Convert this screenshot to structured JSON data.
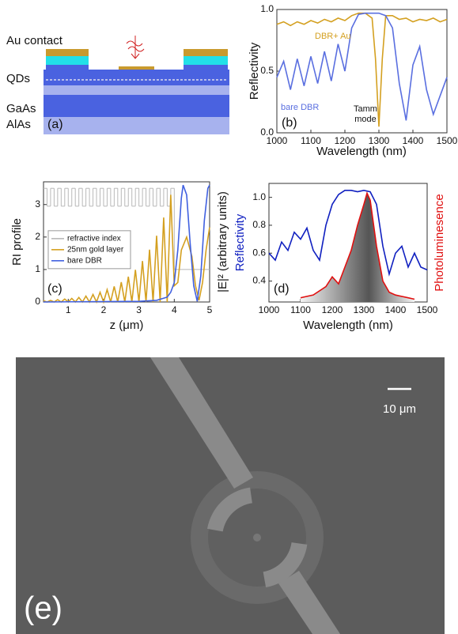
{
  "diagram": {
    "labels": [
      "Au contact",
      "QDs",
      "GaAs",
      "AlAs"
    ],
    "panel_label": "(a)"
  },
  "chart_data": [
    {
      "type": "line",
      "panel_label": "(b)",
      "x_label": "Wavelength (nm)",
      "y_label": "Reflectivity",
      "annotation": "Tamm mode",
      "x": [
        1000,
        1020,
        1040,
        1060,
        1080,
        1100,
        1120,
        1140,
        1160,
        1180,
        1200,
        1220,
        1240,
        1260,
        1280,
        1290,
        1300,
        1310,
        1320,
        1340,
        1360,
        1380,
        1400,
        1420,
        1440,
        1460,
        1480,
        1500
      ],
      "series": [
        {
          "name": "DBR+ Au",
          "color": "#d4a020",
          "values": [
            0.88,
            0.9,
            0.87,
            0.9,
            0.88,
            0.91,
            0.89,
            0.92,
            0.9,
            0.93,
            0.91,
            0.95,
            0.97,
            0.97,
            0.93,
            0.6,
            0.05,
            0.6,
            0.95,
            0.95,
            0.92,
            0.93,
            0.9,
            0.92,
            0.91,
            0.93,
            0.9,
            0.92
          ]
        },
        {
          "name": "bare DBR",
          "color": "#5a6fe0",
          "values": [
            0.45,
            0.58,
            0.35,
            0.6,
            0.38,
            0.62,
            0.4,
            0.66,
            0.42,
            0.72,
            0.5,
            0.85,
            0.96,
            0.97,
            0.97,
            0.97,
            0.97,
            0.96,
            0.95,
            0.85,
            0.4,
            0.1,
            0.55,
            0.7,
            0.35,
            0.15,
            0.3,
            0.45
          ]
        }
      ],
      "xlim": [
        1000,
        1500
      ],
      "ylim": [
        0,
        1
      ],
      "xticks": [
        1000,
        1100,
        1200,
        1300,
        1400,
        1500
      ],
      "yticks": [
        {
          "value": 0,
          "label": "0.0"
        },
        {
          "value": 0.5,
          "label": "0.5"
        },
        {
          "value": 1,
          "label": "1.0"
        }
      ]
    },
    {
      "type": "line",
      "panel_label": "(c)",
      "x_label": "z (μm)",
      "y_label": "RI profile",
      "y2_label": "|E|² (arbitrary units)",
      "legend": "center-left",
      "series": [
        {
          "name": "refractive index",
          "color": "#b8b8b8",
          "step": true,
          "x": [
            0.3,
            0.4,
            0.5,
            0.6,
            0.7,
            0.8,
            0.9,
            1.0,
            1.1,
            1.2,
            1.3,
            1.4,
            1.5,
            1.6,
            1.7,
            1.8,
            1.9,
            2.0,
            2.1,
            2.2,
            2.3,
            2.4,
            2.5,
            2.6,
            2.7,
            2.8,
            2.9,
            3.0,
            3.1,
            3.2,
            3.3,
            3.4,
            3.5,
            3.6,
            3.7,
            3.8,
            3.9,
            4.0,
            5.0
          ],
          "values": [
            3.5,
            2.95,
            3.5,
            2.95,
            3.5,
            2.95,
            3.5,
            2.95,
            3.5,
            2.95,
            3.5,
            2.95,
            3.5,
            2.95,
            3.5,
            2.95,
            3.5,
            2.95,
            3.5,
            2.95,
            3.5,
            2.95,
            3.5,
            2.95,
            3.5,
            2.95,
            3.5,
            2.95,
            3.5,
            2.95,
            3.5,
            2.95,
            3.5,
            2.95,
            3.5,
            2.95,
            3.5,
            1.0,
            1.0
          ]
        },
        {
          "name": "25nm gold layer",
          "color": "#d4a020",
          "x": [
            0.3,
            0.4,
            0.5,
            0.6,
            0.7,
            0.8,
            0.9,
            1.0,
            1.1,
            1.2,
            1.3,
            1.4,
            1.5,
            1.6,
            1.7,
            1.8,
            1.9,
            2.0,
            2.1,
            2.2,
            2.3,
            2.4,
            2.5,
            2.6,
            2.7,
            2.8,
            2.9,
            3.0,
            3.1,
            3.2,
            3.3,
            3.4,
            3.5,
            3.6,
            3.7,
            3.8,
            3.9,
            4.0,
            4.1,
            4.2,
            4.35,
            4.5,
            4.6,
            4.7,
            4.8,
            4.9,
            5.0
          ],
          "values": [
            0.04,
            0,
            0.05,
            0,
            0.07,
            0,
            0.09,
            0,
            0.11,
            0,
            0.14,
            0,
            0.18,
            0,
            0.23,
            0,
            0.3,
            0,
            0.38,
            0,
            0.48,
            0,
            0.61,
            0,
            0.78,
            0,
            0.99,
            0,
            1.26,
            0,
            1.61,
            0,
            2.04,
            0,
            2.6,
            0,
            3.3,
            0.5,
            0.6,
            1.6,
            2.0,
            1.4,
            0.5,
            0.05,
            0.6,
            1.6,
            2.3
          ]
        },
        {
          "name": "bare DBR",
          "color": "#4060e0",
          "x": [
            0.3,
            3.0,
            3.5,
            3.8,
            3.9,
            4.0,
            4.1,
            4.2,
            4.25,
            4.35,
            4.45,
            4.55,
            4.65,
            4.75,
            4.85,
            4.95,
            5.0
          ],
          "values": [
            0,
            0.02,
            0.05,
            0.15,
            0.3,
            0.6,
            1.6,
            3.2,
            3.6,
            3.3,
            1.8,
            0.5,
            0.02,
            0.8,
            2.5,
            3.5,
            3.6
          ]
        }
      ],
      "xlim": [
        0.3,
        5.0
      ],
      "ylim": [
        0,
        3.7
      ],
      "xticks": [
        1,
        2,
        3,
        4,
        5
      ],
      "yticks": [
        0,
        1,
        2,
        3
      ]
    },
    {
      "type": "line",
      "panel_label": "(d)",
      "x_label": "Wavelength (nm)",
      "y_label": "Reflectivity",
      "y2_label": "Photoluminesence",
      "series": [
        {
          "color": "#1020c0",
          "x": [
            1000,
            1020,
            1040,
            1060,
            1080,
            1100,
            1120,
            1140,
            1160,
            1180,
            1200,
            1220,
            1240,
            1260,
            1280,
            1300,
            1320,
            1340,
            1360,
            1380,
            1400,
            1420,
            1440,
            1460,
            1480,
            1500
          ],
          "values": [
            0.6,
            0.55,
            0.68,
            0.62,
            0.75,
            0.7,
            0.78,
            0.62,
            0.55,
            0.8,
            0.95,
            1.02,
            1.05,
            1.05,
            1.04,
            1.05,
            1.04,
            0.95,
            0.65,
            0.45,
            0.6,
            0.65,
            0.5,
            0.6,
            0.5,
            0.48
          ]
        },
        {
          "color": "#e01010",
          "fill": true,
          "x": [
            1100,
            1140,
            1180,
            1200,
            1220,
            1240,
            1260,
            1280,
            1300,
            1310,
            1320,
            1340,
            1360,
            1380,
            1400,
            1440,
            1460
          ],
          "values": [
            0.28,
            0.3,
            0.36,
            0.43,
            0.38,
            0.5,
            0.62,
            0.8,
            0.95,
            1.03,
            0.98,
            0.65,
            0.4,
            0.32,
            0.3,
            0.28,
            0.27
          ]
        }
      ],
      "xlim": [
        1000,
        1500
      ],
      "ylim": [
        0.25,
        1.1
      ],
      "xticks": [
        1000,
        1100,
        1200,
        1300,
        1400,
        1500
      ],
      "yticks": [
        {
          "value": 0.4,
          "label": "0.4"
        },
        {
          "value": 0.6,
          "label": "0.6"
        },
        {
          "value": 0.8,
          "label": "0.8"
        },
        {
          "value": 1,
          "label": "1.0"
        }
      ]
    }
  ],
  "micrograph": {
    "scale_bar": "10 μm",
    "panel_label": "(e)"
  }
}
